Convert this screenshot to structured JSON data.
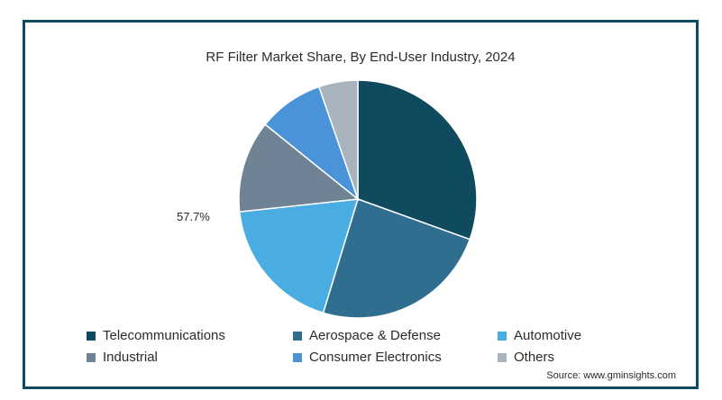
{
  "chart_data": {
    "type": "pie",
    "title": "RF Filter Market Share, By End-User Industry, 2024",
    "annotation": "57.7%",
    "source": "Source: www.gminsights.com",
    "legend_position": "bottom",
    "slices": [
      {
        "label": "Telecommunications",
        "value": 30.5,
        "color": "#0f4a5f"
      },
      {
        "label": "Aerospace & Defense",
        "value": 24.2,
        "color": "#2f6e8e"
      },
      {
        "label": "Automotive",
        "value": 18.6,
        "color": "#49ade2"
      },
      {
        "label": "Industrial",
        "value": 12.5,
        "color": "#6f8394"
      },
      {
        "label": "Consumer Electronics",
        "value": 8.9,
        "color": "#4a93d8"
      },
      {
        "label": "Others",
        "value": 5.3,
        "color": "#a7b3bd"
      }
    ]
  }
}
